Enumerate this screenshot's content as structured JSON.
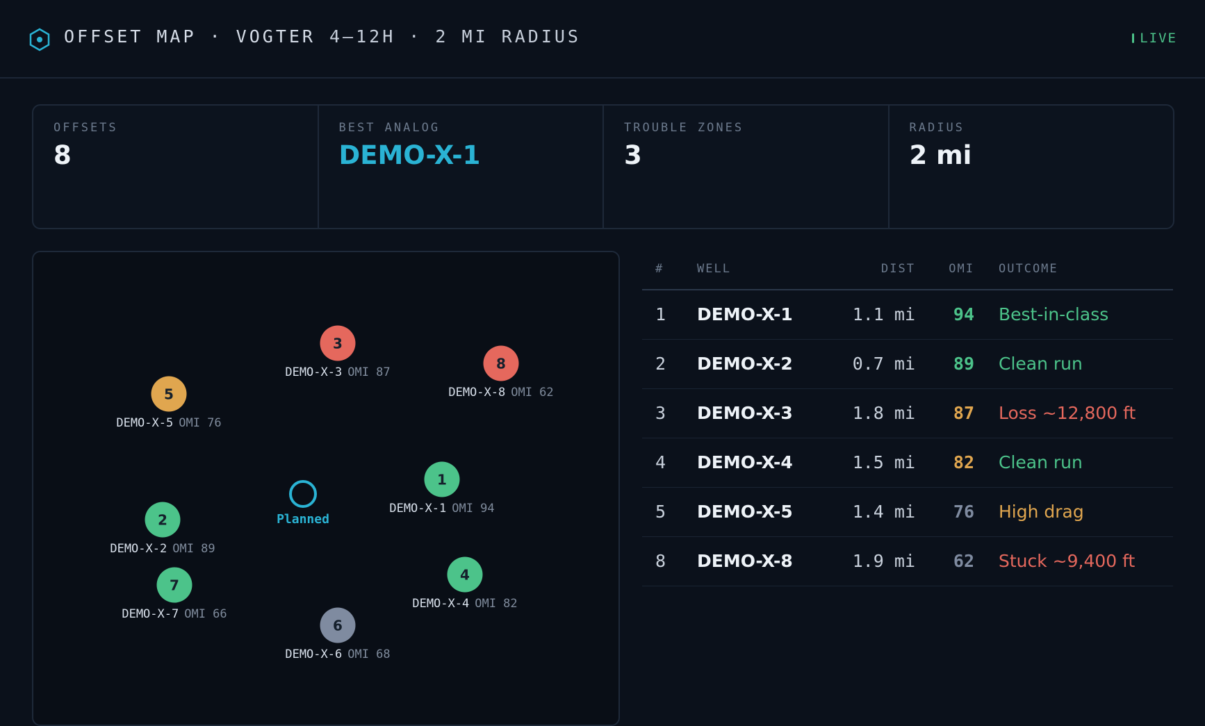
{
  "header": {
    "title": "OFFSET MAP · VOGTER",
    "subtitle": "4–12H · 2 MI RADIUS",
    "status": "LIVE",
    "icon": "hexagon-icon"
  },
  "kpis": [
    {
      "label": "OFFSETS",
      "value": "8"
    },
    {
      "label": "BEST ANALOG",
      "value": "DEMO-X-1"
    },
    {
      "label": "TROUBLE ZONES",
      "value": "3"
    },
    {
      "label": "RADIUS",
      "value": "2 mi"
    }
  ],
  "map": {
    "planned_label": "Planned",
    "wells": [
      {
        "num": "3",
        "name": "DEMO-X-3",
        "omi": "OMI 87",
        "status": "red"
      },
      {
        "num": "8",
        "name": "DEMO-X-8",
        "omi": "OMI 62",
        "status": "red"
      },
      {
        "num": "5",
        "name": "DEMO-X-5",
        "omi": "OMI 76",
        "status": "amber"
      },
      {
        "num": "1",
        "name": "DEMO-X-1",
        "omi": "OMI 94",
        "status": "green"
      },
      {
        "num": "2",
        "name": "DEMO-X-2",
        "omi": "OMI 89",
        "status": "green"
      },
      {
        "num": "7",
        "name": "DEMO-X-7",
        "omi": "OMI 66",
        "status": "green"
      },
      {
        "num": "4",
        "name": "DEMO-X-4",
        "omi": "OMI 82",
        "status": "green"
      },
      {
        "num": "6",
        "name": "DEMO-X-6",
        "omi": "OMI 68",
        "status": "gray"
      }
    ]
  },
  "table": {
    "headers": {
      "num": "#",
      "well": "WELL",
      "dist": "DIST",
      "omi": "OMI",
      "outcome": "OUTCOME"
    },
    "rows": [
      {
        "num": "1",
        "well": "DEMO-X-1",
        "dist": "1.1 mi",
        "omi": "94",
        "outcome": "Best-in-class",
        "omi_tone": "green",
        "outcome_tone": "green"
      },
      {
        "num": "2",
        "well": "DEMO-X-2",
        "dist": "0.7 mi",
        "omi": "89",
        "outcome": "Clean run",
        "omi_tone": "green",
        "outcome_tone": "green"
      },
      {
        "num": "3",
        "well": "DEMO-X-3",
        "dist": "1.8 mi",
        "omi": "87",
        "outcome": "Loss ~12,800 ft",
        "omi_tone": "amber",
        "outcome_tone": "red"
      },
      {
        "num": "4",
        "well": "DEMO-X-4",
        "dist": "1.5 mi",
        "omi": "82",
        "outcome": "Clean run",
        "omi_tone": "amber",
        "outcome_tone": "green"
      },
      {
        "num": "5",
        "well": "DEMO-X-5",
        "dist": "1.4 mi",
        "omi": "76",
        "outcome": "High drag",
        "omi_tone": "gray",
        "outcome_tone": "amber"
      },
      {
        "num": "8",
        "well": "DEMO-X-8",
        "dist": "1.9 mi",
        "omi": "62",
        "outcome": "Stuck ~9,400 ft",
        "omi_tone": "gray",
        "outcome_tone": "red"
      }
    ]
  },
  "colors": {
    "accent": "#2ab3d4",
    "green": "#4cc38a",
    "amber": "#e0a64f",
    "red": "#e5685d",
    "gray": "#7f8ba0",
    "background": "#0b111b"
  }
}
